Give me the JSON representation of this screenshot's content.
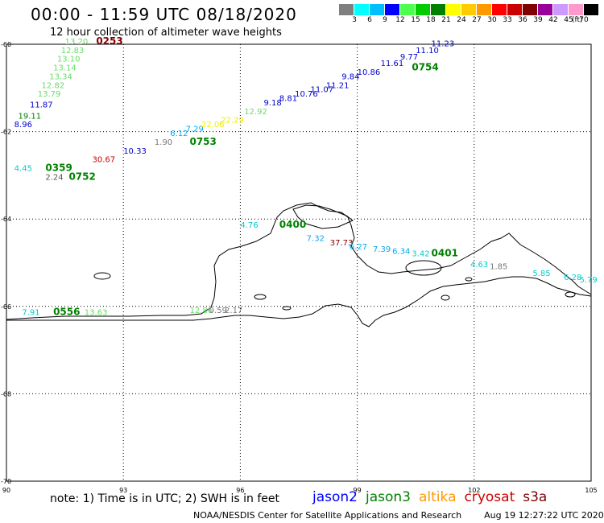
{
  "title": "00:00 - 11:59 UTC 08/18/2020",
  "subtitle": "12 hour collection of altimeter wave heights",
  "colorbar": {
    "unit": "(ft)",
    "ticks": [
      "3",
      "6",
      "9",
      "12",
      "15",
      "18",
      "21",
      "24",
      "27",
      "30",
      "33",
      "36",
      "39",
      "42",
      "45",
      "70"
    ],
    "colors": [
      "#7f7f7f",
      "#00ffff",
      "#00bfff",
      "#0000ff",
      "#4dff4d",
      "#00cc00",
      "#008000",
      "#ffff00",
      "#ffcc00",
      "#ff9900",
      "#ff0000",
      "#cc0000",
      "#800000",
      "#990099",
      "#cc99ff",
      "#ff99cc",
      "#000000"
    ]
  },
  "map": {
    "lat_ticks": [
      "-60",
      "-62",
      "-64",
      "-66",
      "-68",
      "-70"
    ],
    "lon_ticks": [
      "90",
      "93",
      "96",
      "99",
      "102",
      "105"
    ],
    "lat_range": [
      -70,
      -60
    ],
    "lon_range": [
      90,
      105
    ],
    "grid": true,
    "wave_labels": [
      {
        "text": "13.20",
        "lon": 91.5,
        "lat": -60.0,
        "color": "#66dd66"
      },
      {
        "text": "12.83",
        "lon": 91.4,
        "lat": -60.2,
        "color": "#66dd66"
      },
      {
        "text": "13.10",
        "lon": 91.3,
        "lat": -60.4,
        "color": "#66dd66"
      },
      {
        "text": "13.14",
        "lon": 91.2,
        "lat": -60.6,
        "color": "#66dd66"
      },
      {
        "text": "13.34",
        "lon": 91.1,
        "lat": -60.8,
        "color": "#66dd66"
      },
      {
        "text": "12.82",
        "lon": 90.9,
        "lat": -61.0,
        "color": "#66dd66"
      },
      {
        "text": "13.79",
        "lon": 90.8,
        "lat": -61.2,
        "color": "#66dd66"
      },
      {
        "text": "11.87",
        "lon": 90.6,
        "lat": -61.45,
        "color": "#0000cc"
      },
      {
        "text": "19.11",
        "lon": 90.3,
        "lat": -61.7,
        "color": "#008000"
      },
      {
        "text": "8.96",
        "lon": 90.2,
        "lat": -61.9,
        "color": "#0000cc"
      },
      {
        "text": "4.45",
        "lon": 90.2,
        "lat": -62.9,
        "color": "#00cccc"
      },
      {
        "text": "2.24",
        "lon": 91.0,
        "lat": -63.1,
        "color": "#555555"
      },
      {
        "text": "30.67",
        "lon": 92.2,
        "lat": -62.7,
        "color": "#cc0000"
      },
      {
        "text": "10.33",
        "lon": 93.0,
        "lat": -62.5,
        "color": "#0000cc"
      },
      {
        "text": "1.90",
        "lon": 93.8,
        "lat": -62.3,
        "color": "#777777"
      },
      {
        "text": "6.12",
        "lon": 94.2,
        "lat": -62.1,
        "color": "#00aaee"
      },
      {
        "text": "7.29",
        "lon": 94.6,
        "lat": -62.0,
        "color": "#00aaee"
      },
      {
        "text": "22.06",
        "lon": 95.0,
        "lat": -61.9,
        "color": "#eeee00"
      },
      {
        "text": "22.29",
        "lon": 95.5,
        "lat": -61.8,
        "color": "#eeee00"
      },
      {
        "text": "12.92",
        "lon": 96.1,
        "lat": -61.6,
        "color": "#66dd66"
      },
      {
        "text": "9.18",
        "lon": 96.6,
        "lat": -61.4,
        "color": "#0000cc"
      },
      {
        "text": "8.81",
        "lon": 97.0,
        "lat": -61.3,
        "color": "#0000cc"
      },
      {
        "text": "10.76",
        "lon": 97.4,
        "lat": -61.2,
        "color": "#0000cc"
      },
      {
        "text": "11.07",
        "lon": 97.8,
        "lat": -61.1,
        "color": "#0000cc"
      },
      {
        "text": "11.21",
        "lon": 98.2,
        "lat": -61.0,
        "color": "#0000cc"
      },
      {
        "text": "9.84",
        "lon": 98.6,
        "lat": -60.8,
        "color": "#0000cc"
      },
      {
        "text": "10.86",
        "lon": 99.0,
        "lat": -60.7,
        "color": "#0000cc"
      },
      {
        "text": "11.61",
        "lon": 99.6,
        "lat": -60.5,
        "color": "#0000cc"
      },
      {
        "text": "9.77",
        "lon": 100.1,
        "lat": -60.35,
        "color": "#0000cc"
      },
      {
        "text": "11.10",
        "lon": 100.5,
        "lat": -60.2,
        "color": "#0000cc"
      },
      {
        "text": "11.23",
        "lon": 100.9,
        "lat": -60.05,
        "color": "#0000cc"
      },
      {
        "text": "4.76",
        "lon": 96.0,
        "lat": -64.2,
        "color": "#00cccc"
      },
      {
        "text": "7.32",
        "lon": 97.7,
        "lat": -64.5,
        "color": "#00aaee"
      },
      {
        "text": "37.73",
        "lon": 98.3,
        "lat": -64.6,
        "color": "#800000"
      },
      {
        "text": "6.27",
        "lon": 98.8,
        "lat": -64.7,
        "color": "#00aaee"
      },
      {
        "text": "7.39",
        "lon": 99.4,
        "lat": -64.75,
        "color": "#00aaee"
      },
      {
        "text": "6.34",
        "lon": 99.9,
        "lat": -64.8,
        "color": "#00aaee"
      },
      {
        "text": "3.42",
        "lon": 100.4,
        "lat": -64.85,
        "color": "#00cccc"
      },
      {
        "text": "4.63",
        "lon": 101.9,
        "lat": -65.1,
        "color": "#00cccc"
      },
      {
        "text": "1.85",
        "lon": 102.4,
        "lat": -65.15,
        "color": "#777777"
      },
      {
        "text": "5.85",
        "lon": 103.5,
        "lat": -65.3,
        "color": "#00cccc"
      },
      {
        "text": "6.28",
        "lon": 104.3,
        "lat": -65.4,
        "color": "#00cccc"
      },
      {
        "text": "5.79",
        "lon": 104.7,
        "lat": -65.45,
        "color": "#00cccc"
      },
      {
        "text": "7.91",
        "lon": 90.4,
        "lat": -66.2,
        "color": "#00cccc"
      },
      {
        "text": "13.63",
        "lon": 92.0,
        "lat": -66.2,
        "color": "#66dd66"
      },
      {
        "text": "12.86",
        "lon": 94.7,
        "lat": -66.15,
        "color": "#66dd66"
      },
      {
        "text": "0.59",
        "lon": 95.2,
        "lat": -66.15,
        "color": "#777777"
      },
      {
        "text": "2.17",
        "lon": 95.6,
        "lat": -66.15,
        "color": "#777777"
      }
    ],
    "time_labels": [
      {
        "text": "0253",
        "lon": 92.3,
        "lat": -60.0,
        "color": "#800000"
      },
      {
        "text": "0754",
        "lon": 100.4,
        "lat": -60.6,
        "color": "#008000"
      },
      {
        "text": "0753",
        "lon": 94.7,
        "lat": -62.3,
        "color": "#008000"
      },
      {
        "text": "0359",
        "lon": 91.0,
        "lat": -62.9,
        "color": "#008000"
      },
      {
        "text": "0752",
        "lon": 91.6,
        "lat": -63.1,
        "color": "#008000"
      },
      {
        "text": "0400",
        "lon": 97.0,
        "lat": -64.2,
        "color": "#008000"
      },
      {
        "text": "0401",
        "lon": 100.9,
        "lat": -64.85,
        "color": "#008000"
      },
      {
        "text": "0556",
        "lon": 91.2,
        "lat": -66.2,
        "color": "#008000"
      }
    ]
  },
  "note": "note:  1) Time is in UTC;  2) SWH is in feet",
  "legend": [
    {
      "name": "jason2",
      "color": "#0000ff"
    },
    {
      "name": "jason3",
      "color": "#008000"
    },
    {
      "name": "altika",
      "color": "#ff9900"
    },
    {
      "name": "cryosat",
      "color": "#cc0000"
    },
    {
      "name": "s3a",
      "color": "#800000"
    }
  ],
  "credit": "NOAA/NESDIS Center for Satellite Applications and Research",
  "timestamp": "Aug 19 12:27:22 UTC 2020"
}
